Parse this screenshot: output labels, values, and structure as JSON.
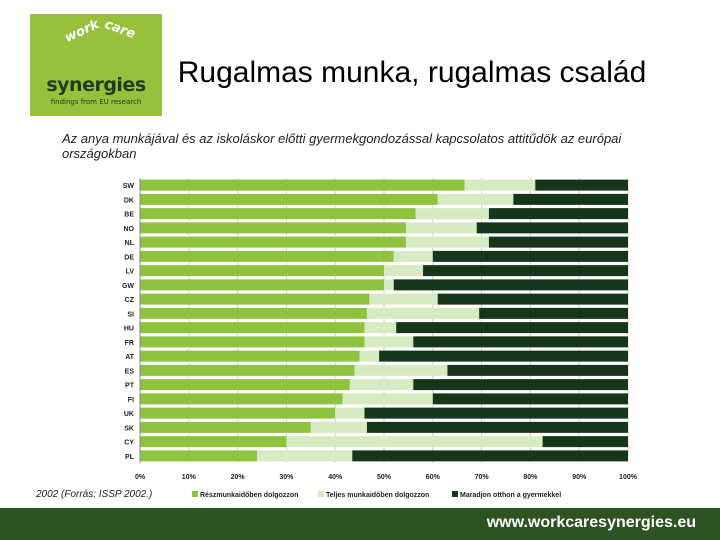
{
  "logo": {
    "work": "work",
    "care": "care",
    "name": "synergies",
    "tagline": "findings from EU research"
  },
  "header": {
    "title": "Rugalmas munka, rugalmas család",
    "subtitle": "Az anya munkájával és az iskoláskor előtti gyermekgondozással kapcsolatos attitűdök az európai országokban"
  },
  "source": "2002 (Forrás: ISSP 2002.)",
  "footer": {
    "url": "www.workcaresynergies.eu"
  },
  "colors": {
    "brand_green": "#97c03d",
    "dark_green": "#1f3d1a",
    "series": [
      "#8fc23f",
      "#d7ebc3",
      "#16361a"
    ]
  },
  "chart_data": {
    "type": "bar",
    "orientation": "horizontal",
    "stacked": true,
    "categories": [
      "SW",
      "DK",
      "BE",
      "NO",
      "NL",
      "DE",
      "LV",
      "GW",
      "CZ",
      "SI",
      "HU",
      "FR",
      "AT",
      "ES",
      "PT",
      "FI",
      "UK",
      "SK",
      "CY",
      "PL"
    ],
    "series": [
      {
        "name": "Részmunkaidőben dolgozzon",
        "values": [
          66.5,
          61,
          56.5,
          54.5,
          54.5,
          52,
          50,
          50,
          47,
          46.5,
          46,
          46,
          45,
          44,
          43,
          41.5,
          40,
          35,
          30,
          24
        ]
      },
      {
        "name": "Teljes munkaidőben dolgozzon",
        "values": [
          14.5,
          15.5,
          15,
          14.5,
          17,
          8,
          8,
          2,
          14,
          23,
          6.5,
          10,
          4,
          19,
          13,
          18.5,
          6,
          11.5,
          52.5,
          19.5
        ]
      },
      {
        "name": "Maradjon otthon a gyermekkel",
        "values": [
          19,
          23.5,
          28.5,
          31,
          28.5,
          40,
          42,
          48,
          39,
          30.5,
          47.5,
          44,
          51,
          37,
          44,
          40,
          54,
          53.5,
          17.5,
          56.5
        ]
      }
    ],
    "xlim": [
      0,
      100
    ],
    "xticks": [
      "0%",
      "10%",
      "20%",
      "30%",
      "40%",
      "50%",
      "60%",
      "70%",
      "80%",
      "90%",
      "100%"
    ],
    "grid": true,
    "legend": "bottom"
  }
}
